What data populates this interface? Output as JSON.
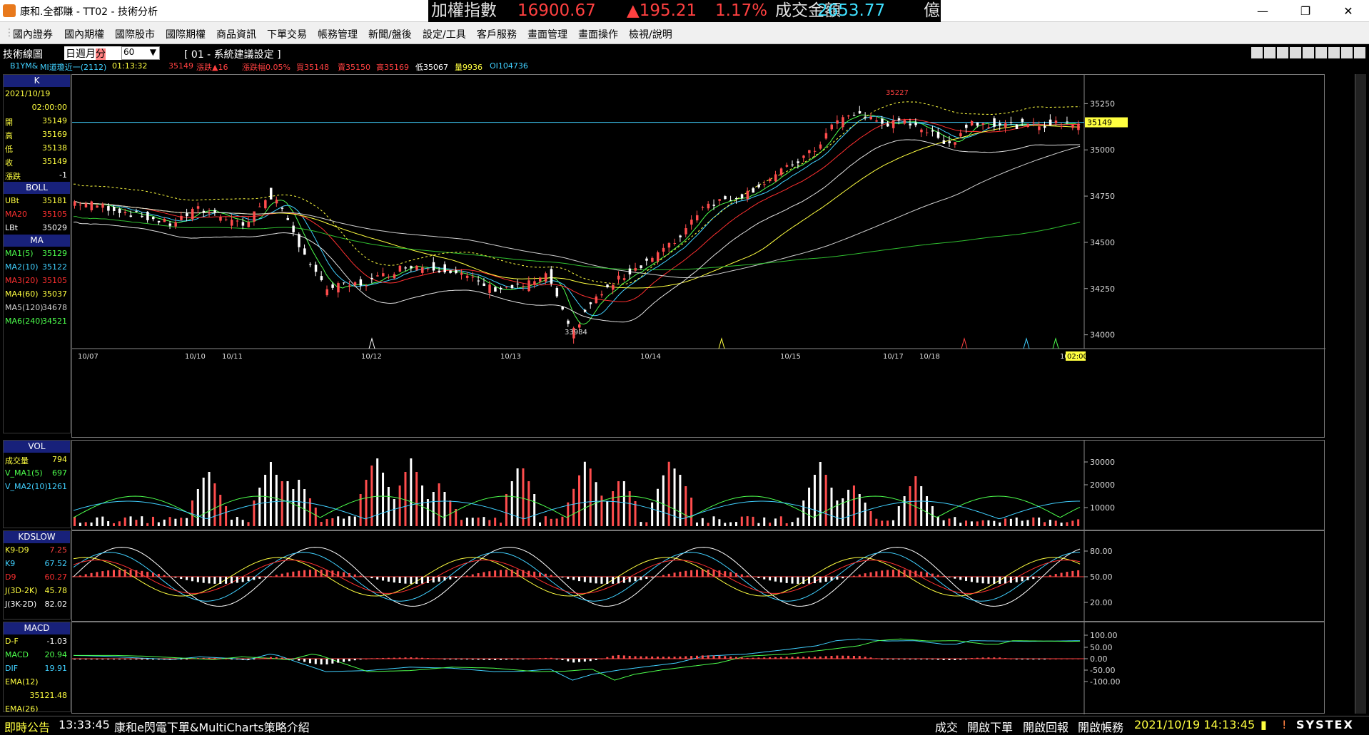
{
  "window": {
    "title": "康和.全都賺 - TT02 - 技術分析"
  },
  "ticker": {
    "name": "加權指數",
    "value": "16900.67",
    "change": "▲195.21",
    "pct": "1.17%",
    "turnover_label": "成交金額",
    "turnover": "2653.77",
    "unit": "億"
  },
  "menu": [
    "國內證券",
    "國內期權",
    "國際股市",
    "國際期權",
    "商品資訊",
    "下單交易",
    "帳務管理",
    "新聞/盤後",
    "設定/工具",
    "客戶服務",
    "畫面管理",
    "畫面操作",
    "檢視/說明"
  ],
  "toolbar": {
    "tab": "技術線圖",
    "periods": [
      "日",
      "週",
      "月",
      "分"
    ],
    "interval": "60",
    "setting": "[ 01 - 系統建議設定 ]"
  },
  "infoline": {
    "symbol": "B1YM&",
    "desc": "MI道瓊近一(2112)",
    "time": "01:13:32",
    "price": "35149",
    "change": "漲跌▲16",
    "change_pct": "漲跌幅0.05%",
    "buy": "買35148",
    "sell": "賣35150",
    "high": "高35169",
    "low": "低35067",
    "volume": "量9936",
    "oi": "OI104736"
  },
  "side": {
    "k": {
      "title": "K",
      "date": "2021/10/19",
      "time": "02:00:00",
      "rows": [
        {
          "l": "開",
          "v": "35149"
        },
        {
          "l": "高",
          "v": "35169"
        },
        {
          "l": "低",
          "v": "35138"
        },
        {
          "l": "收",
          "v": "35149"
        },
        {
          "l": "漲跌",
          "v": "-1"
        }
      ]
    },
    "boll": {
      "title": "BOLL",
      "rows": [
        {
          "l": "UBt",
          "v": "35181"
        },
        {
          "l": "MA20",
          "v": "35105"
        },
        {
          "l": "LBt",
          "v": "35029"
        }
      ]
    },
    "ma": {
      "title": "MA",
      "rows": [
        {
          "l": "MA1(5)",
          "v": "35129"
        },
        {
          "l": "MA2(10)",
          "v": "35122"
        },
        {
          "l": "MA3(20)",
          "v": "35105"
        },
        {
          "l": "MA4(60)",
          "v": "35037"
        },
        {
          "l": "MA5(120)",
          "v": "34678"
        },
        {
          "l": "MA6(240)",
          "v": "34521"
        }
      ]
    },
    "vol": {
      "title": "VOL",
      "rows": [
        {
          "l": "成交量",
          "v": "794"
        },
        {
          "l": "V_MA1(5)",
          "v": "697"
        },
        {
          "l": "V_MA2(10)",
          "v": "1261"
        }
      ]
    },
    "kd": {
      "title": "KDSLOW",
      "rows": [
        {
          "l": "K9-D9",
          "v": "7.25"
        },
        {
          "l": "K9",
          "v": "67.52"
        },
        {
          "l": "D9",
          "v": "60.27"
        },
        {
          "l": "J(3D-2K)",
          "v": "45.78"
        },
        {
          "l": "J(3K-2D)",
          "v": "82.02"
        }
      ]
    },
    "macd": {
      "title": "MACD",
      "rows": [
        {
          "l": "D-F",
          "v": "-1.03"
        },
        {
          "l": "MACD",
          "v": "20.94"
        },
        {
          "l": "DIF",
          "v": "19.91"
        },
        {
          "l": "EMA(12)",
          "v": ""
        },
        {
          "l": "",
          "v": "35121.48"
        },
        {
          "l": "EMA(26)",
          "v": ""
        }
      ]
    }
  },
  "price_axis": [
    "35250",
    "35000",
    "34750",
    "34500",
    "34250",
    "34000"
  ],
  "price_current": "35149",
  "price_high_label": "35227",
  "price_low_label": "33984",
  "dates": [
    "10/07",
    "10/10",
    "10/11",
    "10/12",
    "10/13",
    "10/14",
    "10/15",
    "10/17",
    "10/18",
    "10",
    "02:00"
  ],
  "vol_axis": [
    "30000",
    "20000",
    "10000"
  ],
  "kd_axis": [
    "80.00",
    "50.00",
    "20.00"
  ],
  "macd_axis": [
    "100.00",
    "50.00",
    "0.00",
    "-50.00",
    "-100.00"
  ],
  "status": {
    "label": "即時公告",
    "time": "13:33:45",
    "msg": "康和e閃電下單&MultiCharts策略介紹",
    "btns": [
      "成交",
      "開啟下單",
      "開啟回報",
      "開啟帳務"
    ],
    "datetime": "2021/10/19 14:13:45",
    "brand": "SYSTEX"
  },
  "colors": {
    "up": "#ff4d4d",
    "down": "#ffffff",
    "ma5": "#4dff4d",
    "ma10": "#40d0ff",
    "ma20": "#ff3030",
    "ma60": "#ffff40",
    "ma120": "#d0d0d0",
    "ma240": "#30c030",
    "boll": "#ffff40"
  }
}
